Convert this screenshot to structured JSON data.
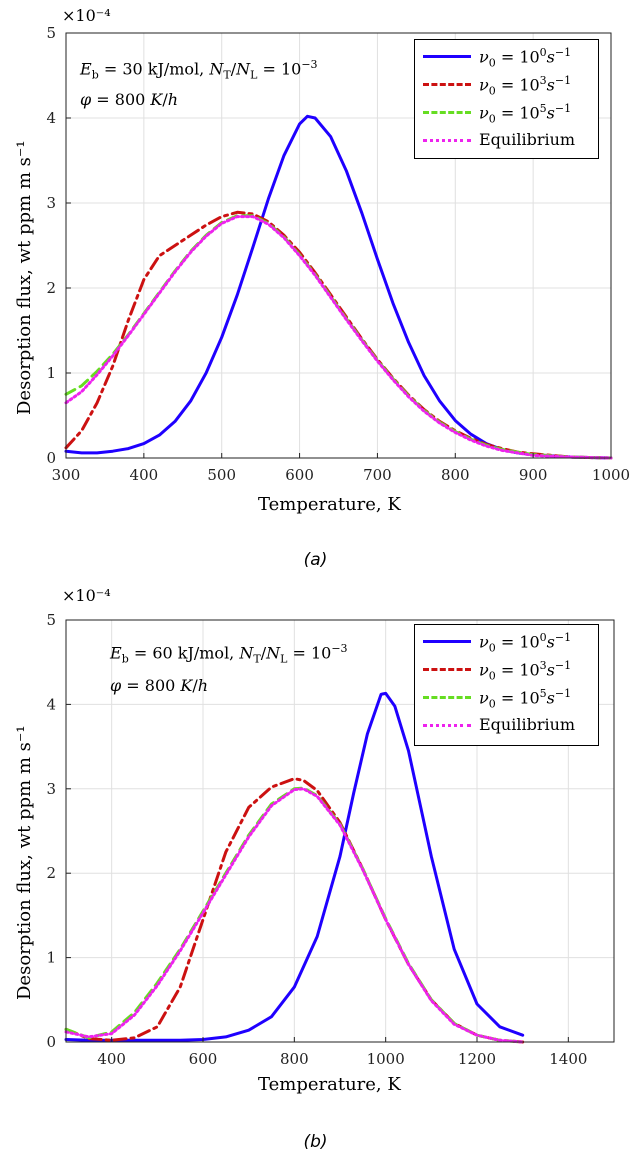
{
  "chart_data": [
    {
      "id": "a",
      "type": "line",
      "caption": "(a)",
      "xlabel": "Temperature, K",
      "ylabel": "Desorption flux, wt ppm m s⁻¹",
      "multiplier": "×10⁻⁴",
      "xlim": [
        300,
        1000
      ],
      "ylim": [
        0,
        5
      ],
      "xticks": [
        300,
        400,
        500,
        600,
        700,
        800,
        900,
        1000
      ],
      "yticks": [
        0,
        1,
        2,
        3,
        4,
        5
      ],
      "grid": true,
      "legend_position": "top-right",
      "annotation_line1": "E_b = 30 kJ/mol, N_T/N_L = 10^-3",
      "annotation_line2": "φ = 800 K/h",
      "series": [
        {
          "name": "ν0 = 10^0 s^-1",
          "color": "#1f00ff",
          "dash": "solid",
          "x": [
            300,
            320,
            340,
            360,
            380,
            400,
            420,
            440,
            460,
            480,
            500,
            520,
            540,
            560,
            580,
            600,
            610,
            620,
            640,
            660,
            680,
            700,
            720,
            740,
            760,
            780,
            800,
            820,
            840,
            860,
            880,
            900,
            950,
            1000
          ],
          "y": [
            0.08,
            0.06,
            0.06,
            0.08,
            0.11,
            0.17,
            0.27,
            0.43,
            0.67,
            1.0,
            1.42,
            1.92,
            2.48,
            3.05,
            3.56,
            3.93,
            4.02,
            4.0,
            3.78,
            3.38,
            2.88,
            2.34,
            1.82,
            1.36,
            0.97,
            0.67,
            0.44,
            0.28,
            0.17,
            0.1,
            0.06,
            0.04,
            0.01,
            0.0
          ]
        },
        {
          "name": "ν0 = 10^3 s^-1",
          "color": "#cc1111",
          "dash": "dashdot",
          "x": [
            300,
            320,
            340,
            360,
            380,
            400,
            420,
            440,
            460,
            480,
            500,
            520,
            540,
            560,
            580,
            600,
            620,
            640,
            660,
            680,
            700,
            720,
            740,
            760,
            780,
            800,
            820,
            840,
            860,
            880,
            900,
            950,
            1000
          ],
          "y": [
            0.12,
            0.32,
            0.65,
            1.08,
            1.62,
            2.1,
            2.38,
            2.5,
            2.62,
            2.74,
            2.84,
            2.89,
            2.87,
            2.78,
            2.62,
            2.42,
            2.18,
            1.92,
            1.66,
            1.4,
            1.16,
            0.94,
            0.74,
            0.57,
            0.43,
            0.32,
            0.23,
            0.16,
            0.11,
            0.07,
            0.05,
            0.01,
            0.0
          ]
        },
        {
          "name": "ν0 = 10^5 s^-1",
          "color": "#66dd22",
          "dash": "dash",
          "x": [
            300,
            320,
            340,
            360,
            380,
            400,
            420,
            440,
            460,
            480,
            500,
            520,
            540,
            560,
            580,
            600,
            620,
            640,
            660,
            680,
            700,
            720,
            740,
            760,
            780,
            800,
            820,
            840,
            860,
            880,
            900,
            950,
            1000
          ],
          "y": [
            0.75,
            0.85,
            1.02,
            1.22,
            1.45,
            1.7,
            1.95,
            2.2,
            2.43,
            2.62,
            2.77,
            2.85,
            2.85,
            2.76,
            2.6,
            2.39,
            2.16,
            1.9,
            1.64,
            1.39,
            1.15,
            0.93,
            0.73,
            0.56,
            0.42,
            0.31,
            0.22,
            0.15,
            0.1,
            0.07,
            0.04,
            0.01,
            0.0
          ]
        },
        {
          "name": "Equilibrium",
          "color": "#ee22ee",
          "dash": "dot",
          "x": [
            300,
            320,
            340,
            360,
            380,
            400,
            420,
            440,
            460,
            480,
            500,
            520,
            540,
            560,
            580,
            600,
            620,
            640,
            660,
            680,
            700,
            720,
            740,
            760,
            780,
            800,
            820,
            840,
            860,
            880,
            900,
            950,
            1000
          ],
          "y": [
            0.65,
            0.78,
            0.98,
            1.2,
            1.44,
            1.69,
            1.94,
            2.19,
            2.42,
            2.61,
            2.76,
            2.84,
            2.84,
            2.75,
            2.59,
            2.38,
            2.15,
            1.89,
            1.63,
            1.38,
            1.14,
            0.92,
            0.72,
            0.55,
            0.41,
            0.3,
            0.21,
            0.14,
            0.09,
            0.06,
            0.03,
            0.01,
            0.0
          ]
        }
      ]
    },
    {
      "id": "b",
      "type": "line",
      "caption": "(b)",
      "xlabel": "Temperature, K",
      "ylabel": "Desorption flux, wt ppm m s⁻¹",
      "multiplier": "×10⁻⁴",
      "xlim": [
        300,
        1500
      ],
      "ylim": [
        0,
        5
      ],
      "xticks": [
        400,
        600,
        800,
        1000,
        1200,
        1400
      ],
      "yticks": [
        0,
        1,
        2,
        3,
        4,
        5
      ],
      "grid": true,
      "legend_position": "top-right",
      "annotation_line1": "E_b = 60 kJ/mol, N_T/N_L = 10^-3",
      "annotation_line2": "φ = 800 K/h",
      "series": [
        {
          "name": "ν0 = 10^0 s^-1",
          "color": "#1f00ff",
          "dash": "solid",
          "x": [
            300,
            350,
            400,
            450,
            500,
            550,
            600,
            650,
            700,
            750,
            800,
            850,
            900,
            930,
            960,
            990,
            1000,
            1020,
            1050,
            1080,
            1100,
            1150,
            1200,
            1250,
            1300
          ],
          "y": [
            0.03,
            0.02,
            0.02,
            0.02,
            0.02,
            0.02,
            0.03,
            0.06,
            0.14,
            0.3,
            0.65,
            1.25,
            2.2,
            2.95,
            3.65,
            4.12,
            4.13,
            3.98,
            3.45,
            2.7,
            2.2,
            1.1,
            0.45,
            0.18,
            0.08
          ]
        },
        {
          "name": "ν0 = 10^3 s^-1",
          "color": "#cc1111",
          "dash": "dashdot",
          "x": [
            300,
            350,
            400,
            450,
            500,
            550,
            600,
            650,
            700,
            750,
            800,
            820,
            850,
            900,
            950,
            1000,
            1050,
            1100,
            1150,
            1200,
            1250,
            1300
          ],
          "y": [
            0.15,
            0.04,
            0.02,
            0.05,
            0.18,
            0.65,
            1.45,
            2.25,
            2.78,
            3.02,
            3.12,
            3.1,
            2.98,
            2.6,
            2.05,
            1.45,
            0.92,
            0.5,
            0.22,
            0.08,
            0.02,
            0.0
          ]
        },
        {
          "name": "ν0 = 10^5 s^-1",
          "color": "#66dd22",
          "dash": "dash",
          "x": [
            300,
            350,
            400,
            450,
            500,
            550,
            600,
            650,
            700,
            750,
            800,
            820,
            850,
            900,
            950,
            1000,
            1050,
            1100,
            1150,
            1200,
            1250,
            1300
          ],
          "y": [
            0.15,
            0.05,
            0.12,
            0.35,
            0.7,
            1.1,
            1.55,
            2.0,
            2.45,
            2.82,
            3.0,
            3.01,
            2.92,
            2.58,
            2.05,
            1.46,
            0.93,
            0.5,
            0.22,
            0.08,
            0.02,
            0.0
          ]
        },
        {
          "name": "Equilibrium",
          "color": "#ee22ee",
          "dash": "dot",
          "x": [
            300,
            350,
            400,
            450,
            500,
            550,
            600,
            650,
            700,
            750,
            800,
            820,
            850,
            900,
            950,
            1000,
            1050,
            1100,
            1150,
            1200,
            1250,
            1300
          ],
          "y": [
            0.12,
            0.06,
            0.1,
            0.32,
            0.67,
            1.08,
            1.53,
            1.98,
            2.43,
            2.8,
            2.99,
            3.0,
            2.91,
            2.57,
            2.04,
            1.45,
            0.92,
            0.49,
            0.21,
            0.08,
            0.02,
            0.0
          ]
        }
      ]
    }
  ]
}
